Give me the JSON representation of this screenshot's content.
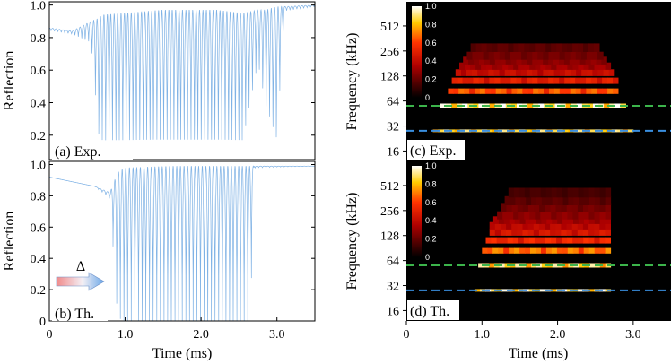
{
  "colors": {
    "trace": "#7fb2e5",
    "green_line": "#3cb44b",
    "blue_line": "#3a8fe0"
  },
  "chart_data": [
    {
      "id": "a",
      "type": "line",
      "panel_label": "(a) Exp.",
      "xlabel": "",
      "ylabel": "Reflection",
      "xlim": [
        0,
        3.5
      ],
      "ylim": [
        0.05,
        1.02
      ],
      "yticks": [
        0.2,
        0.4,
        0.6,
        0.8,
        1.0
      ],
      "ytick_labels": [
        "0.2",
        "0.4",
        "0.6",
        "0.8",
        "1.0"
      ],
      "envelope": {
        "x": [
          0,
          0.3,
          0.55,
          0.65,
          0.7,
          1.5,
          2.2,
          2.55,
          2.75,
          2.85,
          3.0,
          3.1,
          3.5
        ],
        "upper": [
          0.86,
          0.84,
          0.9,
          0.92,
          0.94,
          0.97,
          0.97,
          0.95,
          0.97,
          0.97,
          0.99,
          0.99,
          1.0
        ],
        "lower": [
          0.84,
          0.82,
          0.75,
          0.1,
          0.05,
          0.05,
          0.05,
          0.05,
          0.6,
          0.3,
          0.05,
          0.96,
          0.99
        ]
      },
      "oscillation_period_ms": 0.045
    },
    {
      "id": "b",
      "type": "line",
      "panel_label": "(b) Th.",
      "xlabel": "Time (ms)",
      "ylabel": "Reflection",
      "xlim": [
        0,
        3.5
      ],
      "ylim": [
        0,
        1.02
      ],
      "xticks": [
        0,
        1.0,
        2.0,
        3.0
      ],
      "xtick_labels": [
        "0",
        "1.0",
        "2.0",
        "3.0"
      ],
      "yticks": [
        0,
        0.2,
        0.4,
        0.6,
        0.8,
        1.0
      ],
      "ytick_labels": [
        "0",
        "0.2",
        "0.4",
        "0.6",
        "0.8",
        "1.0"
      ],
      "envelope": {
        "x": [
          0,
          0.6,
          0.8,
          0.9,
          1.0,
          1.6,
          2.65,
          2.7,
          3.5
        ],
        "upper": [
          0.92,
          0.86,
          0.82,
          0.95,
          0.98,
          0.99,
          0.99,
          0.99,
          0.99
        ],
        "lower": [
          0.92,
          0.86,
          0.78,
          0.02,
          0.0,
          0.0,
          0.0,
          0.98,
          0.99
        ]
      },
      "oscillation_period_ms": 0.048,
      "arrow_label": "Δ"
    },
    {
      "id": "c",
      "type": "heatmap",
      "panel_label": "(c) Exp.",
      "xlabel": "",
      "ylabel": "Frequency (kHz)",
      "xlim": [
        0,
        3.5
      ],
      "ylim_khz": [
        12,
        1000
      ],
      "yscale": "log2",
      "yticks": [
        16,
        32,
        64,
        128,
        256,
        512
      ],
      "ytick_labels": [
        "16",
        "32",
        "64",
        "128",
        "256",
        "512"
      ],
      "colorbar": {
        "ticks": [
          0,
          0.2,
          0.4,
          0.6,
          0.8,
          1.0
        ],
        "labels": [
          "0",
          "0.2",
          "0.4",
          "0.6",
          "0.8",
          "1.0"
        ]
      },
      "hlines_khz": [
        56,
        28
      ],
      "bands": [
        {
          "f": 28,
          "t0": 0.35,
          "t1": 3.0,
          "amp": 0.95
        },
        {
          "f": 56,
          "t0": 0.45,
          "t1": 2.9,
          "amp": 1.0
        },
        {
          "f": 84,
          "t0": 0.55,
          "t1": 2.8,
          "amp": 0.7
        },
        {
          "f": 112,
          "t0": 0.6,
          "t1": 2.8,
          "amp": 0.55
        },
        {
          "f": 140,
          "t0": 0.65,
          "t1": 2.75,
          "amp": 0.45
        },
        {
          "f": 168,
          "t0": 0.7,
          "t1": 2.7,
          "amp": 0.35
        },
        {
          "f": 196,
          "t0": 0.75,
          "t1": 2.65,
          "amp": 0.3
        },
        {
          "f": 224,
          "t0": 0.8,
          "t1": 2.6,
          "amp": 0.25
        },
        {
          "f": 280,
          "t0": 0.85,
          "t1": 2.55,
          "amp": 0.2
        }
      ]
    },
    {
      "id": "d",
      "type": "heatmap",
      "panel_label": "(d) Th.",
      "xlabel": "Time (ms)",
      "ylabel": "Frequency (kHz)",
      "xlim": [
        0,
        3.5
      ],
      "ylim_khz": [
        12,
        1000
      ],
      "yscale": "log2",
      "xticks": [
        0,
        1.0,
        2.0,
        3.0
      ],
      "xtick_labels": [
        "0",
        "1.0",
        "2.0",
        "3.0"
      ],
      "yticks": [
        16,
        32,
        64,
        128,
        256,
        512
      ],
      "ytick_labels": [
        "16",
        "32",
        "64",
        "128",
        "256",
        "512"
      ],
      "colorbar": {
        "ticks": [
          0,
          0.2,
          0.4,
          0.6,
          0.8,
          1.0
        ],
        "labels": [
          "0",
          "0.2",
          "0.4",
          "0.6",
          "0.8",
          "1.0"
        ]
      },
      "hlines_khz": [
        56,
        28
      ],
      "bands": [
        {
          "f": 28,
          "t0": 0.9,
          "t1": 2.7,
          "amp": 1.0
        },
        {
          "f": 56,
          "t0": 0.95,
          "t1": 2.7,
          "amp": 0.95
        },
        {
          "f": 84,
          "t0": 1.0,
          "t1": 2.7,
          "amp": 0.75
        },
        {
          "f": 112,
          "t0": 1.05,
          "t1": 2.7,
          "amp": 0.6
        },
        {
          "f": 140,
          "t0": 1.1,
          "t1": 2.7,
          "amp": 0.5
        },
        {
          "f": 168,
          "t0": 1.1,
          "t1": 2.7,
          "amp": 0.42
        },
        {
          "f": 196,
          "t0": 1.15,
          "t1": 2.7,
          "amp": 0.35
        },
        {
          "f": 224,
          "t0": 1.2,
          "t1": 2.7,
          "amp": 0.3
        },
        {
          "f": 280,
          "t0": 1.25,
          "t1": 2.7,
          "amp": 0.25
        },
        {
          "f": 336,
          "t0": 1.3,
          "t1": 2.7,
          "amp": 0.2
        },
        {
          "f": 420,
          "t0": 1.35,
          "t1": 2.7,
          "amp": 0.15
        }
      ]
    }
  ]
}
